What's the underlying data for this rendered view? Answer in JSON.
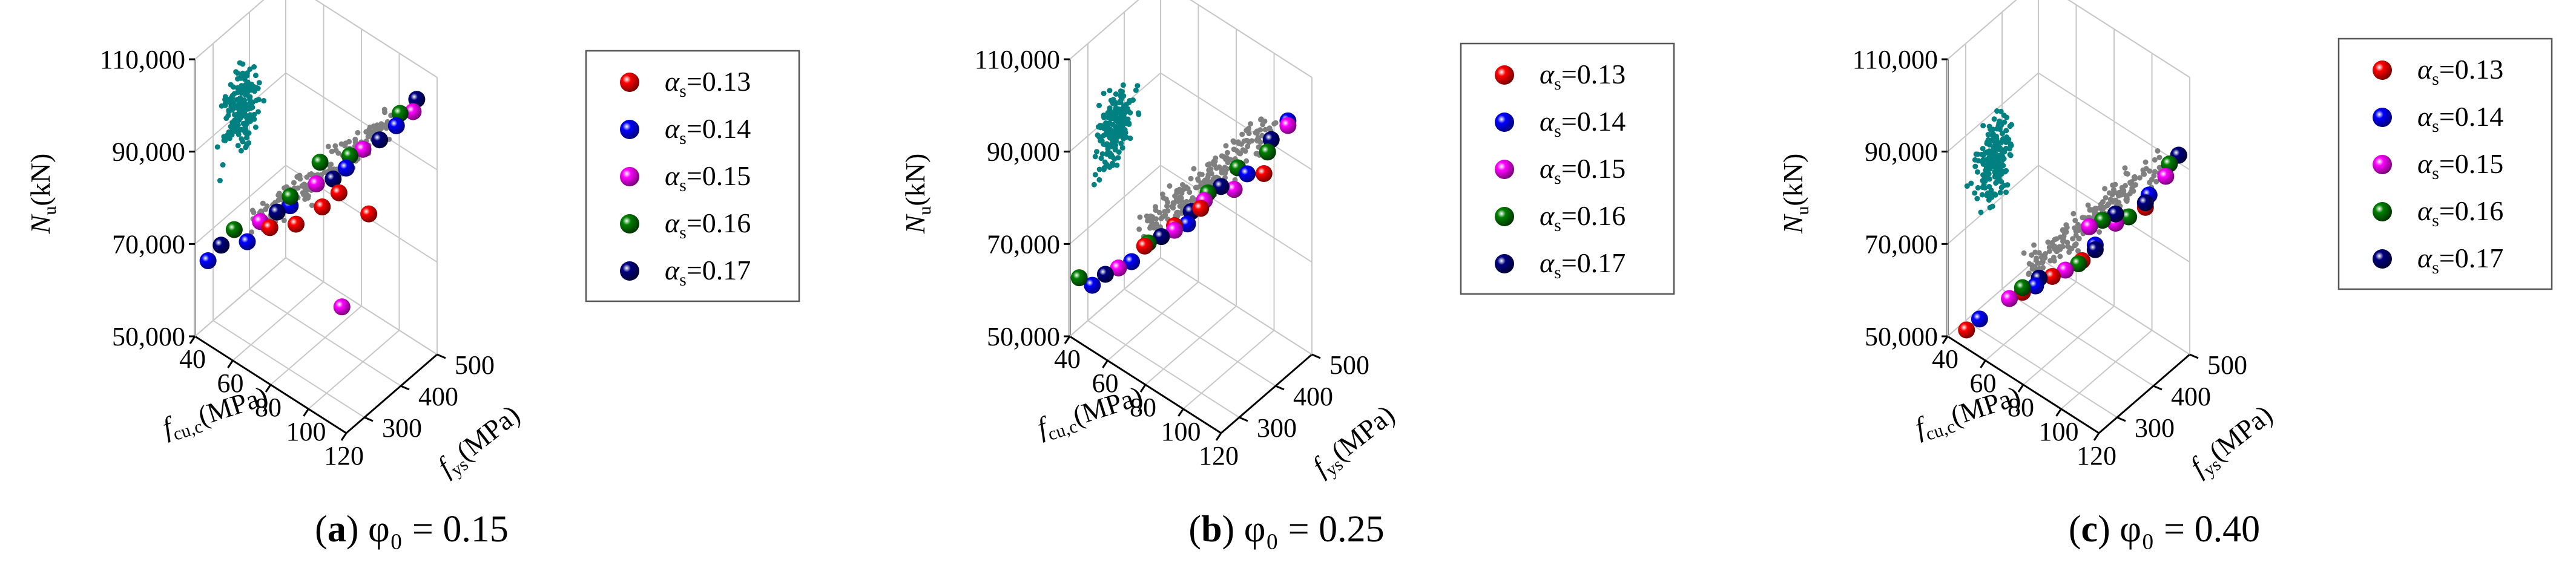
{
  "figure": {
    "shared": {
      "z_axis": {
        "label_main": "N",
        "label_sub": "u",
        "label_unit": "(kN)",
        "ticks": [
          "50,000",
          "70,000",
          "90,000",
          "110,000"
        ],
        "range": [
          50000,
          110000
        ]
      },
      "x_axis": {
        "label_main": "f",
        "label_sub": "cu,c",
        "label_unit": "(MPa)",
        "ticks": [
          "40",
          "60",
          "80",
          "100",
          "120"
        ],
        "range": [
          40,
          120
        ]
      },
      "y_axis": {
        "label_main": "f",
        "label_sub": "ys",
        "label_unit": "(MPa)",
        "ticks": [
          "300",
          "400",
          "500"
        ],
        "range": [
          250,
          500
        ]
      },
      "legend": [
        {
          "symbol": "α",
          "sub": "s",
          "text": "=0.13",
          "color": "#ff0000"
        },
        {
          "symbol": "α",
          "sub": "s",
          "text": "=0.14",
          "color": "#0000ff"
        },
        {
          "symbol": "α",
          "sub": "s",
          "text": "=0.15",
          "color": "#ff00ff"
        },
        {
          "symbol": "α",
          "sub": "s",
          "text": "=0.16",
          "color": "#008000"
        },
        {
          "symbol": "α",
          "sub": "s",
          "text": "=0.17",
          "color": "#000080"
        }
      ],
      "projection_colors": {
        "wall_left": "#008080",
        "wall_right": "#808080"
      }
    },
    "panels": [
      {
        "caption_letter": "a",
        "caption_rest": " φ₀ = 0.15"
      },
      {
        "caption_letter": "b",
        "caption_rest": " φ₀ = 0.25"
      },
      {
        "caption_letter": "c",
        "caption_rest": " φ₀ = 0.40"
      }
    ]
  },
  "chart_data": [
    {
      "type": "scatter",
      "dimension": "3d",
      "phi0": 0.15,
      "xlabel": "fcu,c(MPa)",
      "ylabel": "fys(MPa)",
      "zlabel": "Nu(kN)",
      "xlim": [
        40,
        120
      ],
      "ylim": [
        250,
        500
      ],
      "zlim": [
        50000,
        110000
      ],
      "trend": {
        "x": [
          45,
          115
        ],
        "y": [
          250,
          470
        ],
        "z": [
          66000,
          106000
        ]
      },
      "series": [
        {
          "name": "αs=0.13",
          "points": [
            [
              70,
              300,
              78000
            ],
            [
              90,
              340,
              85000
            ],
            [
              105,
              390,
              84000
            ],
            [
              80,
              320,
              80000
            ],
            [
              95,
              360,
              88000
            ]
          ]
        },
        {
          "name": "αs=0.14",
          "points": [
            [
              45,
              260,
              67000
            ],
            [
              60,
              290,
              73000
            ],
            [
              75,
              330,
              82000
            ],
            [
              95,
              380,
              92000
            ],
            [
              110,
              440,
              101000
            ]
          ]
        },
        {
          "name": "αs=0.15",
          "points": [
            [
              65,
              300,
              78000
            ],
            [
              85,
              350,
              88000
            ],
            [
              100,
              400,
              96000
            ],
            [
              115,
              460,
              104000
            ],
            [
              110,
              290,
              72000
            ]
          ]
        },
        {
          "name": "αs=0.16",
          "points": [
            [
              55,
              280,
              75000
            ],
            [
              75,
              330,
              84000
            ],
            [
              95,
              390,
              94000
            ],
            [
              110,
              450,
              103000
            ],
            [
              85,
              360,
              92000
            ]
          ]
        },
        {
          "name": "αs=0.17",
          "points": [
            [
              50,
              270,
              71000
            ],
            [
              70,
              320,
              80000
            ],
            [
              90,
              370,
              89000
            ],
            [
              105,
              420,
              98000
            ],
            [
              115,
              470,
              106000
            ]
          ]
        }
      ]
    },
    {
      "type": "scatter",
      "dimension": "3d",
      "phi0": 0.25,
      "xlabel": "fcu,c(MPa)",
      "ylabel": "fys(MPa)",
      "zlabel": "Nu(kN)",
      "xlim": [
        40,
        120
      ],
      "ylim": [
        250,
        500
      ],
      "zlim": [
        50000,
        110000
      ],
      "trend": {
        "x": [
          45,
          115
        ],
        "y": [
          250,
          470
        ],
        "z": [
          62000,
          104000
        ]
      },
      "series": [
        {
          "name": "αs=0.13",
          "points": [
            [
              70,
              300,
              74000
            ],
            [
              90,
              350,
              84000
            ],
            [
              110,
              420,
              92000
            ],
            [
              80,
              330,
              79000
            ],
            [
              100,
              390,
              88000
            ]
          ]
        },
        {
          "name": "αs=0.14",
          "points": [
            [
              50,
              260,
              63000
            ],
            [
              65,
              290,
              70000
            ],
            [
              85,
              340,
              80000
            ],
            [
              105,
              400,
              92000
            ],
            [
              115,
              460,
              102000
            ]
          ]
        },
        {
          "name": "αs=0.15",
          "points": [
            [
              60,
              280,
              68000
            ],
            [
              80,
              330,
              78000
            ],
            [
              100,
              390,
              88000
            ],
            [
              115,
              460,
              101000
            ],
            [
              90,
              360,
              85000
            ]
          ]
        },
        {
          "name": "αs=0.16",
          "points": [
            [
              45,
              250,
              64000
            ],
            [
              70,
              310,
              74000
            ],
            [
              90,
              370,
              86000
            ],
            [
              110,
              430,
              96000
            ],
            [
              100,
              400,
              92000
            ]
          ]
        },
        {
          "name": "αs=0.17",
          "points": [
            [
              55,
              270,
              66000
            ],
            [
              75,
              320,
              76000
            ],
            [
              95,
              380,
              88000
            ],
            [
              110,
              440,
              98000
            ],
            [
              85,
              350,
              82000
            ]
          ]
        }
      ]
    },
    {
      "type": "scatter",
      "dimension": "3d",
      "phi0": 0.4,
      "xlabel": "fcu,c(MPa)",
      "ylabel": "fys(MPa)",
      "zlabel": "Nu(kN)",
      "xlim": [
        40,
        120
      ],
      "ylim": [
        250,
        500
      ],
      "zlim": [
        50000,
        110000
      ],
      "trend": {
        "x": [
          50,
          118
        ],
        "y": [
          250,
          480
        ],
        "z": [
          55000,
          96000
        ]
      },
      "series": [
        {
          "name": "αs=0.13",
          "points": [
            [
              50,
              250,
              54000
            ],
            [
              70,
              300,
              64000
            ],
            [
              90,
              360,
              72000
            ],
            [
              110,
              430,
              84000
            ],
            [
              80,
              330,
              68000
            ]
          ]
        },
        {
          "name": "αs=0.14",
          "points": [
            [
              55,
              260,
              57000
            ],
            [
              75,
              310,
              66000
            ],
            [
              95,
              370,
              76000
            ],
            [
              110,
              440,
              86000
            ],
            [
              118,
              480,
              94000
            ]
          ]
        },
        {
          "name": "αs=0.15",
          "points": [
            [
              65,
              290,
              62000
            ],
            [
              85,
              340,
              70000
            ],
            [
              100,
              400,
              80000
            ],
            [
              115,
              460,
              90000
            ],
            [
              90,
              380,
              78000
            ]
          ]
        },
        {
          "name": "αs=0.16",
          "points": [
            [
              70,
              300,
              65000
            ],
            [
              90,
              350,
              72000
            ],
            [
              105,
              410,
              82000
            ],
            [
              115,
              470,
              92000
            ],
            [
              95,
              390,
              80000
            ]
          ]
        },
        {
          "name": "αs=0.17",
          "points": [
            [
              75,
              320,
              67000
            ],
            [
              95,
              370,
              75000
            ],
            [
              110,
              430,
              85000
            ],
            [
              118,
              480,
              94000
            ],
            [
              100,
              400,
              82000
            ]
          ]
        }
      ]
    }
  ]
}
